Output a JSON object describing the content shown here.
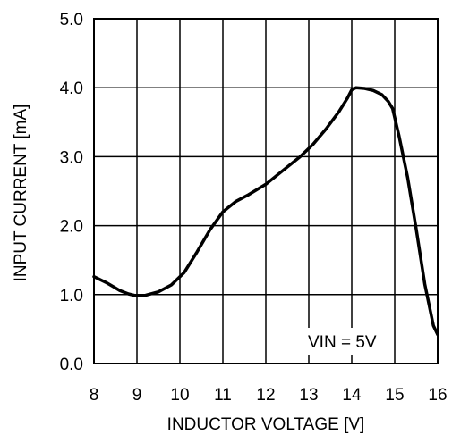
{
  "chart_data": {
    "type": "line",
    "title": "",
    "xlabel": "INDUCTOR VOLTAGE [V]",
    "ylabel": "INPUT CURRENT [mA]",
    "xlim": [
      8,
      16
    ],
    "ylim": [
      0.0,
      5.0
    ],
    "x_ticks": [
      "8",
      "9",
      "10",
      "11",
      "12",
      "13",
      "14",
      "15",
      "16"
    ],
    "y_ticks": [
      "0.0",
      "1.0",
      "2.0",
      "3.0",
      "4.0",
      "5.0"
    ],
    "grid": true,
    "annotation": "VIN = 5V",
    "series": [
      {
        "color": "#000000",
        "x": [
          8.0,
          8.3,
          8.6,
          8.8,
          9.0,
          9.2,
          9.5,
          9.8,
          10.1,
          10.4,
          10.7,
          11.0,
          11.3,
          11.6,
          12.0,
          12.4,
          12.8,
          13.1,
          13.4,
          13.7,
          13.9,
          14.0,
          14.1,
          14.3,
          14.5,
          14.7,
          14.85,
          14.95,
          15.1,
          15.3,
          15.5,
          15.7,
          15.9,
          16.0
        ],
        "y": [
          1.26,
          1.17,
          1.06,
          1.01,
          0.98,
          0.99,
          1.04,
          1.14,
          1.32,
          1.62,
          1.94,
          2.2,
          2.35,
          2.45,
          2.6,
          2.8,
          3.0,
          3.18,
          3.4,
          3.65,
          3.85,
          3.97,
          4.0,
          3.99,
          3.96,
          3.9,
          3.8,
          3.7,
          3.3,
          2.7,
          1.95,
          1.15,
          0.55,
          0.42
        ]
      }
    ]
  }
}
